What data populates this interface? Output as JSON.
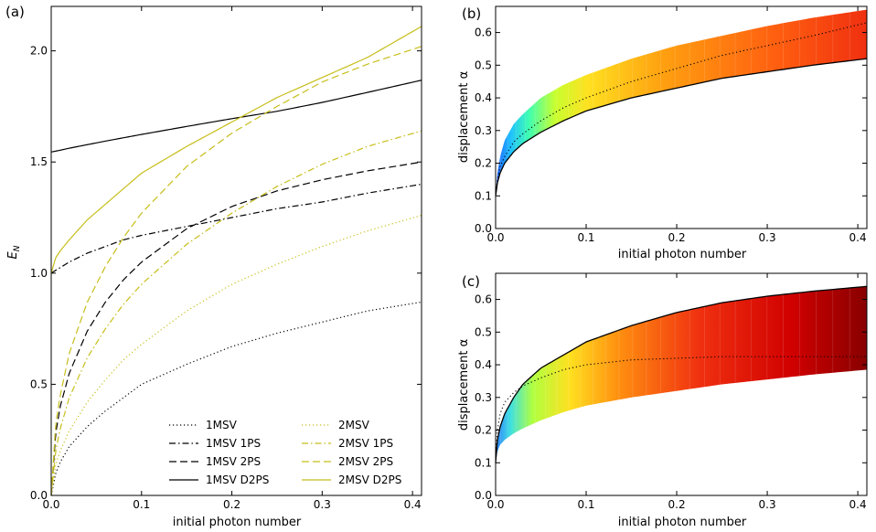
{
  "panels": {
    "a": {
      "label": "(a)"
    },
    "b": {
      "label": "(b)"
    },
    "c": {
      "label": "(c)"
    }
  },
  "chart_data": [
    {
      "id": "a",
      "type": "line",
      "xlabel": "initial photon number",
      "ylabel": "E_N",
      "xlim": [
        0,
        0.41
      ],
      "ylim": [
        0,
        2.2
      ],
      "xticks": [
        "0.0",
        "0.1",
        "0.2",
        "0.3",
        "0.4"
      ],
      "yticks": [
        "0.0",
        "0.5",
        "1.0",
        "1.5",
        "2.0"
      ],
      "x": [
        0,
        0.005,
        0.01,
        0.02,
        0.04,
        0.06,
        0.08,
        0.1,
        0.15,
        0.2,
        0.25,
        0.3,
        0.35,
        0.41
      ],
      "legend_loc": "lower-right",
      "series": [
        {
          "name": "1MSV",
          "color": "#000000",
          "dash": "1.2 2.8",
          "values": [
            0,
            0.1,
            0.15,
            0.22,
            0.31,
            0.38,
            0.44,
            0.5,
            0.59,
            0.67,
            0.73,
            0.78,
            0.83,
            0.87
          ]
        },
        {
          "name": "1MSV 1PS",
          "color": "#000000",
          "dash": "7 3 1.5 3",
          "values": [
            1.0,
            1.013,
            1.025,
            1.05,
            1.09,
            1.12,
            1.15,
            1.17,
            1.21,
            1.25,
            1.29,
            1.32,
            1.36,
            1.4
          ]
        },
        {
          "name": "1MSV 2PS",
          "color": "#000000",
          "dash": "8 4",
          "values": [
            0,
            0.28,
            0.4,
            0.55,
            0.74,
            0.87,
            0.97,
            1.05,
            1.2,
            1.3,
            1.37,
            1.42,
            1.46,
            1.5
          ]
        },
        {
          "name": "1MSV D2PS",
          "color": "#000000",
          "dash": "",
          "values": [
            1.545,
            1.549,
            1.553,
            1.562,
            1.578,
            1.594,
            1.609,
            1.624,
            1.66,
            1.695,
            1.728,
            1.768,
            1.813,
            1.868
          ]
        },
        {
          "name": "2MSV",
          "color": "#c7be1a",
          "dash": "1.2 2.8",
          "values": [
            0,
            0.14,
            0.2,
            0.29,
            0.42,
            0.52,
            0.61,
            0.68,
            0.83,
            0.95,
            1.04,
            1.12,
            1.19,
            1.26
          ]
        },
        {
          "name": "2MSV 1PS",
          "color": "#c7be1a",
          "dash": "7 3 1.5 3",
          "values": [
            0,
            0.2,
            0.3,
            0.44,
            0.62,
            0.75,
            0.86,
            0.95,
            1.13,
            1.27,
            1.39,
            1.49,
            1.57,
            1.64
          ]
        },
        {
          "name": "2MSV 2PS",
          "color": "#c7be1a",
          "dash": "8 4",
          "values": [
            0,
            0.32,
            0.45,
            0.64,
            0.87,
            1.03,
            1.16,
            1.27,
            1.48,
            1.63,
            1.75,
            1.86,
            1.94,
            2.02
          ]
        },
        {
          "name": "2MSV D2PS",
          "color": "#c7be1a",
          "dash": "",
          "values": [
            1.0,
            1.07,
            1.1,
            1.15,
            1.24,
            1.31,
            1.38,
            1.45,
            1.57,
            1.68,
            1.79,
            1.88,
            1.97,
            2.11
          ]
        }
      ]
    },
    {
      "id": "b",
      "type": "area",
      "xlabel": "initial photon number",
      "ylabel": "displacement α",
      "xlim": [
        0,
        0.41
      ],
      "ylim": [
        0,
        0.68
      ],
      "xticks": [
        "0.0",
        "0.1",
        "0.2",
        "0.3",
        "0.4"
      ],
      "yticks": [
        "0.0",
        "0.1",
        "0.2",
        "0.3",
        "0.4",
        "0.5",
        "0.6"
      ],
      "x": [
        0,
        0.002,
        0.005,
        0.01,
        0.02,
        0.03,
        0.05,
        0.075,
        0.1,
        0.15,
        0.2,
        0.25,
        0.3,
        0.35,
        0.41
      ],
      "upper": [
        0.1,
        0.17,
        0.22,
        0.27,
        0.32,
        0.35,
        0.4,
        0.44,
        0.47,
        0.52,
        0.56,
        0.59,
        0.62,
        0.645,
        0.67
      ],
      "lower": [
        0.1,
        0.14,
        0.17,
        0.2,
        0.235,
        0.26,
        0.295,
        0.33,
        0.36,
        0.4,
        0.43,
        0.46,
        0.48,
        0.5,
        0.52
      ],
      "mid_dotted": [
        0.1,
        0.15,
        0.19,
        0.22,
        0.265,
        0.29,
        0.33,
        0.37,
        0.4,
        0.45,
        0.49,
        0.53,
        0.56,
        0.59,
        0.63
      ],
      "colormap": "jet"
    },
    {
      "id": "c",
      "type": "area",
      "xlabel": "initial photon number",
      "ylabel": "displacement α",
      "xlim": [
        0,
        0.41
      ],
      "ylim": [
        0,
        0.68
      ],
      "xticks": [
        "0.0",
        "0.1",
        "0.2",
        "0.3",
        "0.4"
      ],
      "yticks": [
        "0.0",
        "0.1",
        "0.2",
        "0.3",
        "0.4",
        "0.5",
        "0.6"
      ],
      "x": [
        0,
        0.002,
        0.005,
        0.01,
        0.02,
        0.03,
        0.05,
        0.075,
        0.1,
        0.15,
        0.2,
        0.25,
        0.3,
        0.35,
        0.41
      ],
      "upper": [
        0.1,
        0.17,
        0.21,
        0.25,
        0.3,
        0.34,
        0.39,
        0.43,
        0.47,
        0.52,
        0.56,
        0.59,
        0.61,
        0.625,
        0.64
      ],
      "lower": [
        0.1,
        0.135,
        0.155,
        0.17,
        0.19,
        0.205,
        0.23,
        0.255,
        0.275,
        0.3,
        0.32,
        0.34,
        0.355,
        0.37,
        0.385
      ],
      "mid_dotted": [
        0.1,
        0.2,
        0.25,
        0.285,
        0.315,
        0.335,
        0.36,
        0.385,
        0.4,
        0.415,
        0.42,
        0.425,
        0.425,
        0.425,
        0.425
      ],
      "colormap": "jet"
    }
  ]
}
